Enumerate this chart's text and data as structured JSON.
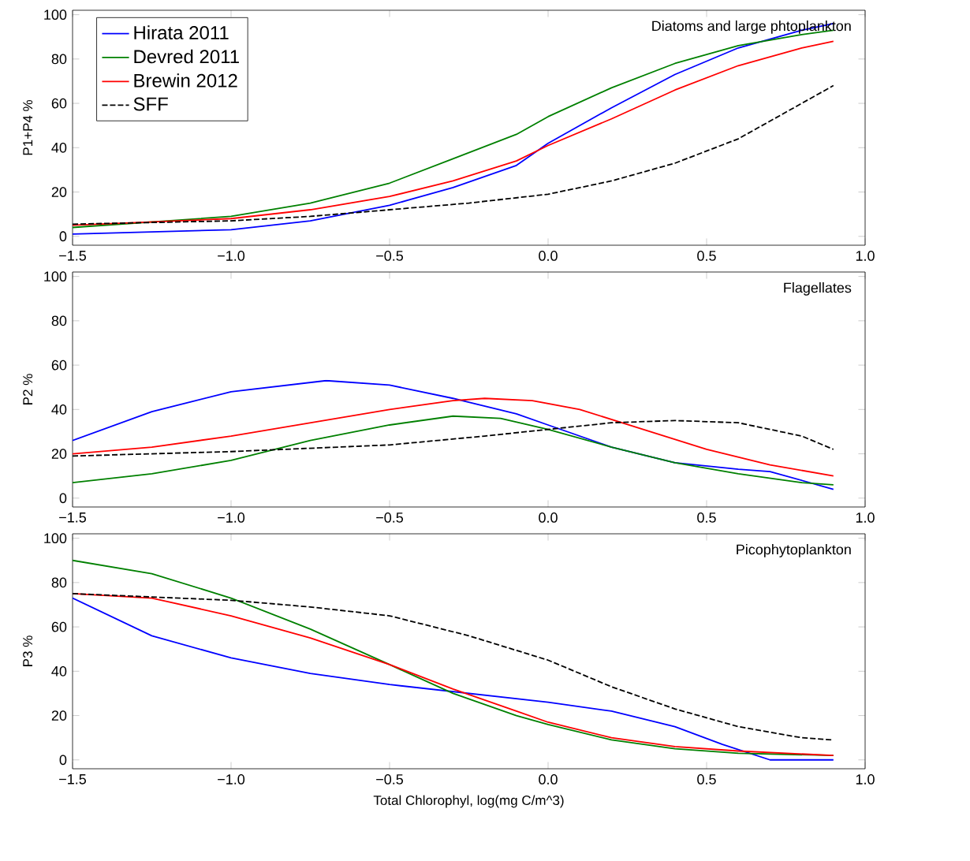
{
  "chart_data": [
    {
      "type": "line",
      "ylabel": "P1+P4 %",
      "annotations": [
        "Diatoms and large phtoplankton"
      ],
      "xlim": [
        -1.5,
        1.0
      ],
      "ylim": [
        -4,
        102
      ],
      "xticks": [
        {
          "value": -1.5,
          "label": "−1.5"
        },
        {
          "value": -1.0,
          "label": "−1.0"
        },
        {
          "value": -0.5,
          "label": "−0.5"
        },
        {
          "value": 0,
          "label": "0.0"
        },
        {
          "value": 0.5,
          "label": "0.5"
        },
        {
          "value": 1.0,
          "label": "1.0"
        }
      ],
      "yticks": [
        0,
        20,
        40,
        60,
        80,
        100
      ],
      "legend": "top left",
      "series": [
        {
          "name": "Hirata 2011",
          "color": "#0000ff",
          "x": [
            -1.5,
            -1.0,
            -0.75,
            -0.5,
            -0.3,
            -0.1,
            0,
            0.2,
            0.4,
            0.6,
            0.8,
            0.9
          ],
          "values": [
            1,
            3,
            7,
            14,
            22,
            32,
            42,
            58,
            73,
            85,
            93,
            96
          ]
        },
        {
          "name": "Devred 2011",
          "color": "#008000",
          "x": [
            -1.5,
            -1.0,
            -0.75,
            -0.5,
            -0.3,
            -0.1,
            0,
            0.2,
            0.4,
            0.6,
            0.8,
            0.9
          ],
          "values": [
            4,
            9,
            15,
            24,
            35,
            46,
            54,
            67,
            78,
            86,
            91,
            93
          ]
        },
        {
          "name": "Brewin 2012",
          "color": "#ff0000",
          "x": [
            -1.5,
            -1.0,
            -0.75,
            -0.5,
            -0.3,
            -0.1,
            0,
            0.2,
            0.4,
            0.6,
            0.8,
            0.9
          ],
          "values": [
            5,
            8,
            12,
            18,
            25,
            34,
            41,
            53,
            66,
            77,
            85,
            88
          ]
        },
        {
          "name": "SFF",
          "color": "#000000",
          "line_style": "dashed",
          "x": [
            -1.5,
            -1.0,
            -0.75,
            -0.5,
            -0.25,
            0,
            0.2,
            0.4,
            0.6,
            0.8,
            0.9
          ],
          "values": [
            5.5,
            7,
            9,
            12,
            15,
            19,
            25,
            33,
            44,
            60,
            68
          ]
        }
      ]
    },
    {
      "type": "line",
      "ylabel": "P2 %",
      "annotations": [
        "Flagellates"
      ],
      "xlim": [
        -1.5,
        1.0
      ],
      "ylim": [
        -4,
        102
      ],
      "xticks": [
        {
          "value": -1.5,
          "label": "−1.5"
        },
        {
          "value": -1.0,
          "label": "−1.0"
        },
        {
          "value": -0.5,
          "label": "−0.5"
        },
        {
          "value": 0,
          "label": "0.0"
        },
        {
          "value": 0.5,
          "label": "0.5"
        },
        {
          "value": 1.0,
          "label": "1.0"
        }
      ],
      "yticks": [
        0,
        20,
        40,
        60,
        80,
        100
      ],
      "series": [
        {
          "color": "#0000ff",
          "x": [
            -1.5,
            -1.25,
            -1.0,
            -0.7,
            -0.5,
            -0.3,
            -0.1,
            0,
            0.2,
            0.4,
            0.6,
            0.7,
            0.9
          ],
          "values": [
            26,
            39,
            48,
            53,
            51,
            45,
            38,
            33,
            23,
            16,
            13,
            12,
            4
          ]
        },
        {
          "color": "#008000",
          "x": [
            -1.5,
            -1.25,
            -1.0,
            -0.75,
            -0.5,
            -0.3,
            -0.15,
            0,
            0.2,
            0.4,
            0.6,
            0.8,
            0.9
          ],
          "values": [
            7,
            11,
            17,
            26,
            33,
            37,
            36,
            31,
            23,
            16,
            11,
            7,
            6
          ]
        },
        {
          "color": "#ff0000",
          "x": [
            -1.5,
            -1.25,
            -1.0,
            -0.75,
            -0.5,
            -0.3,
            -0.2,
            -0.05,
            0.1,
            0.3,
            0.5,
            0.7,
            0.9
          ],
          "values": [
            20,
            23,
            28,
            34,
            40,
            44,
            45,
            44,
            40,
            31,
            22,
            15,
            10
          ]
        },
        {
          "color": "#000000",
          "line_style": "dashed",
          "x": [
            -1.5,
            -1.0,
            -0.5,
            -0.2,
            0,
            0.2,
            0.4,
            0.6,
            0.8,
            0.9
          ],
          "values": [
            19,
            21,
            24,
            28,
            31,
            34,
            35,
            34,
            28,
            22
          ]
        }
      ]
    },
    {
      "type": "line",
      "ylabel": "P3 %",
      "xlabel": "Total Chlorophyl, log(mg C/m^3)",
      "annotations": [
        "Picophytoplankton"
      ],
      "xlim": [
        -1.5,
        1.0
      ],
      "ylim": [
        -4,
        102
      ],
      "xticks": [
        {
          "value": -1.5,
          "label": "−1.5"
        },
        {
          "value": -1.0,
          "label": "−1.0"
        },
        {
          "value": -0.5,
          "label": "−0.5"
        },
        {
          "value": 0,
          "label": "0.0"
        },
        {
          "value": 0.5,
          "label": "0.5"
        },
        {
          "value": 1.0,
          "label": "1.0"
        }
      ],
      "yticks": [
        0,
        20,
        40,
        60,
        80,
        100
      ],
      "series": [
        {
          "color": "#0000ff",
          "x": [
            -1.5,
            -1.25,
            -1.0,
            -0.75,
            -0.5,
            -0.25,
            0,
            0.2,
            0.4,
            0.55,
            0.7,
            0.9
          ],
          "values": [
            73,
            56,
            46,
            39,
            34,
            30,
            26,
            22,
            15,
            7,
            0,
            0
          ]
        },
        {
          "color": "#008000",
          "x": [
            -1.5,
            -1.25,
            -1.0,
            -0.75,
            -0.5,
            -0.3,
            -0.1,
            0,
            0.2,
            0.4,
            0.6,
            0.9
          ],
          "values": [
            90,
            84,
            73,
            59,
            43,
            30,
            20,
            16,
            9,
            5,
            3,
            2
          ]
        },
        {
          "color": "#ff0000",
          "x": [
            -1.5,
            -1.25,
            -1.0,
            -0.75,
            -0.5,
            -0.3,
            -0.1,
            0,
            0.2,
            0.4,
            0.6,
            0.9
          ],
          "values": [
            75,
            73,
            65,
            55,
            43,
            32,
            22,
            17,
            10,
            6,
            4,
            2
          ]
        },
        {
          "color": "#000000",
          "line_style": "dashed",
          "x": [
            -1.5,
            -1.0,
            -0.75,
            -0.5,
            -0.25,
            0,
            0.2,
            0.4,
            0.6,
            0.8,
            0.9
          ],
          "values": [
            75,
            72,
            69,
            65,
            56,
            45,
            33,
            23,
            15,
            10,
            9
          ]
        }
      ]
    }
  ]
}
